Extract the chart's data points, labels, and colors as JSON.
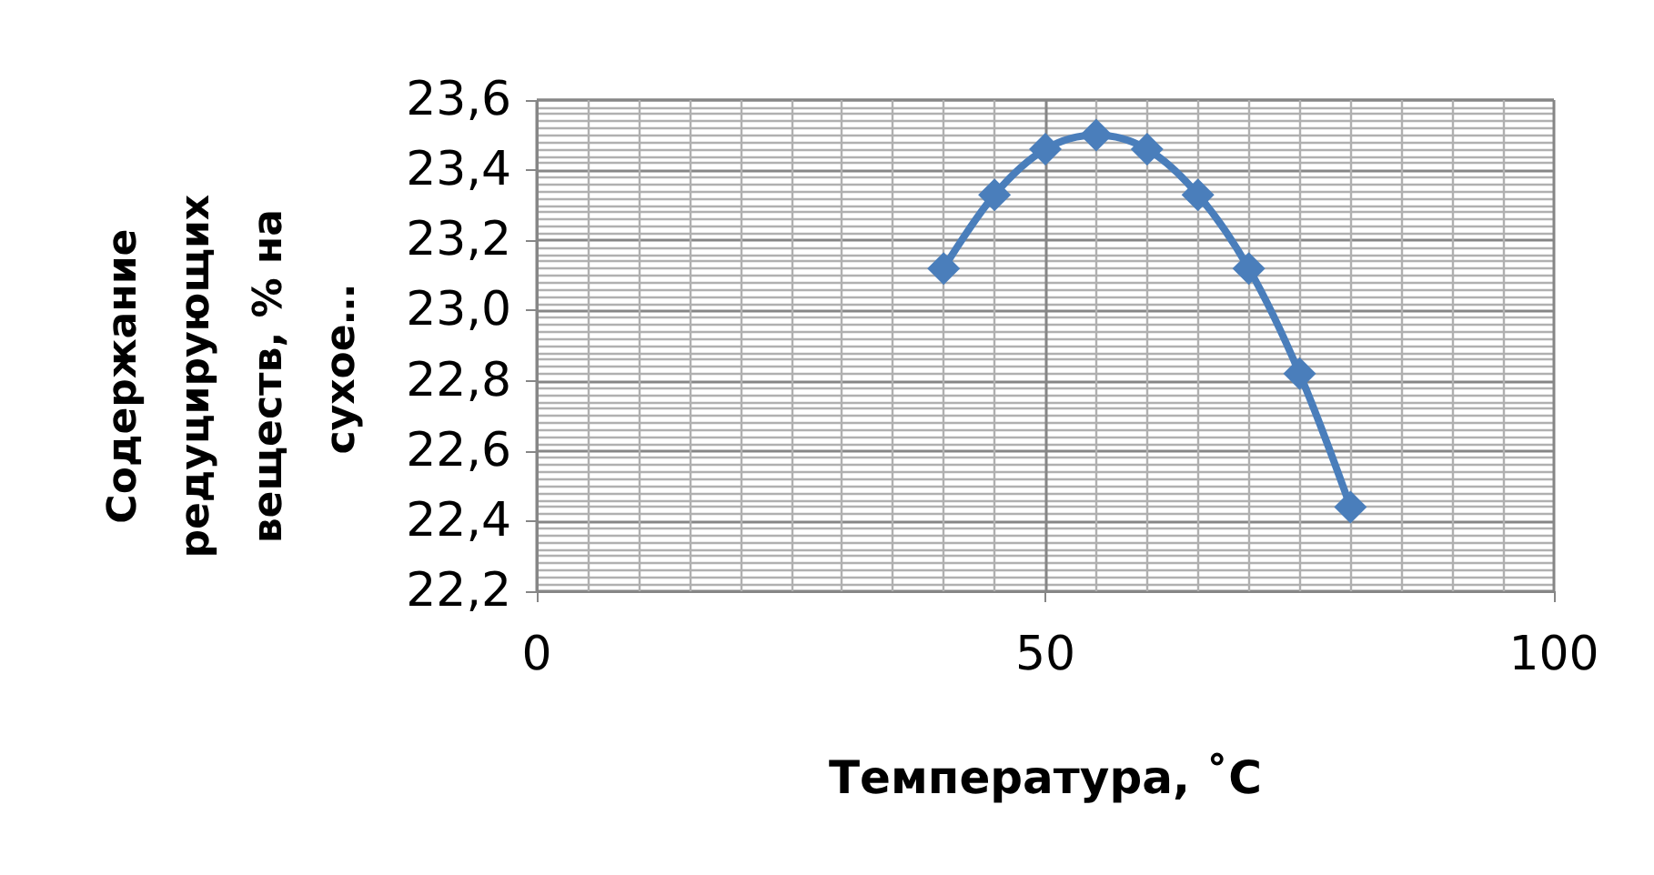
{
  "chart_data": {
    "type": "line",
    "xlabel": "Температура, ˚C",
    "ylabel": "Содержание редуцирующих веществ, % на сухое…",
    "x": [
      40,
      45,
      50,
      55,
      60,
      65,
      70,
      75,
      80
    ],
    "series": [
      {
        "color": "#4a7ebb",
        "values": [
          23.12,
          23.33,
          23.46,
          23.5,
          23.46,
          23.33,
          23.12,
          22.82,
          22.44
        ]
      }
    ],
    "xlim": [
      0,
      100
    ],
    "xticks": [
      0,
      50,
      100
    ],
    "ylim": [
      22.2,
      23.6
    ],
    "yticks": [
      {
        "value": 22.2,
        "label": "22,2"
      },
      {
        "value": 22.4,
        "label": "22,4"
      },
      {
        "value": 22.6,
        "label": "22,6"
      },
      {
        "value": 22.8,
        "label": "22,8"
      },
      {
        "value": 23,
        "label": "23,0"
      },
      {
        "value": 23.2,
        "label": "23,2"
      },
      {
        "value": 23.4,
        "label": "23,4"
      },
      {
        "value": 23.6,
        "label": "23,6"
      }
    ],
    "grid": true,
    "marker": "diamond",
    "line_style": "solid"
  }
}
